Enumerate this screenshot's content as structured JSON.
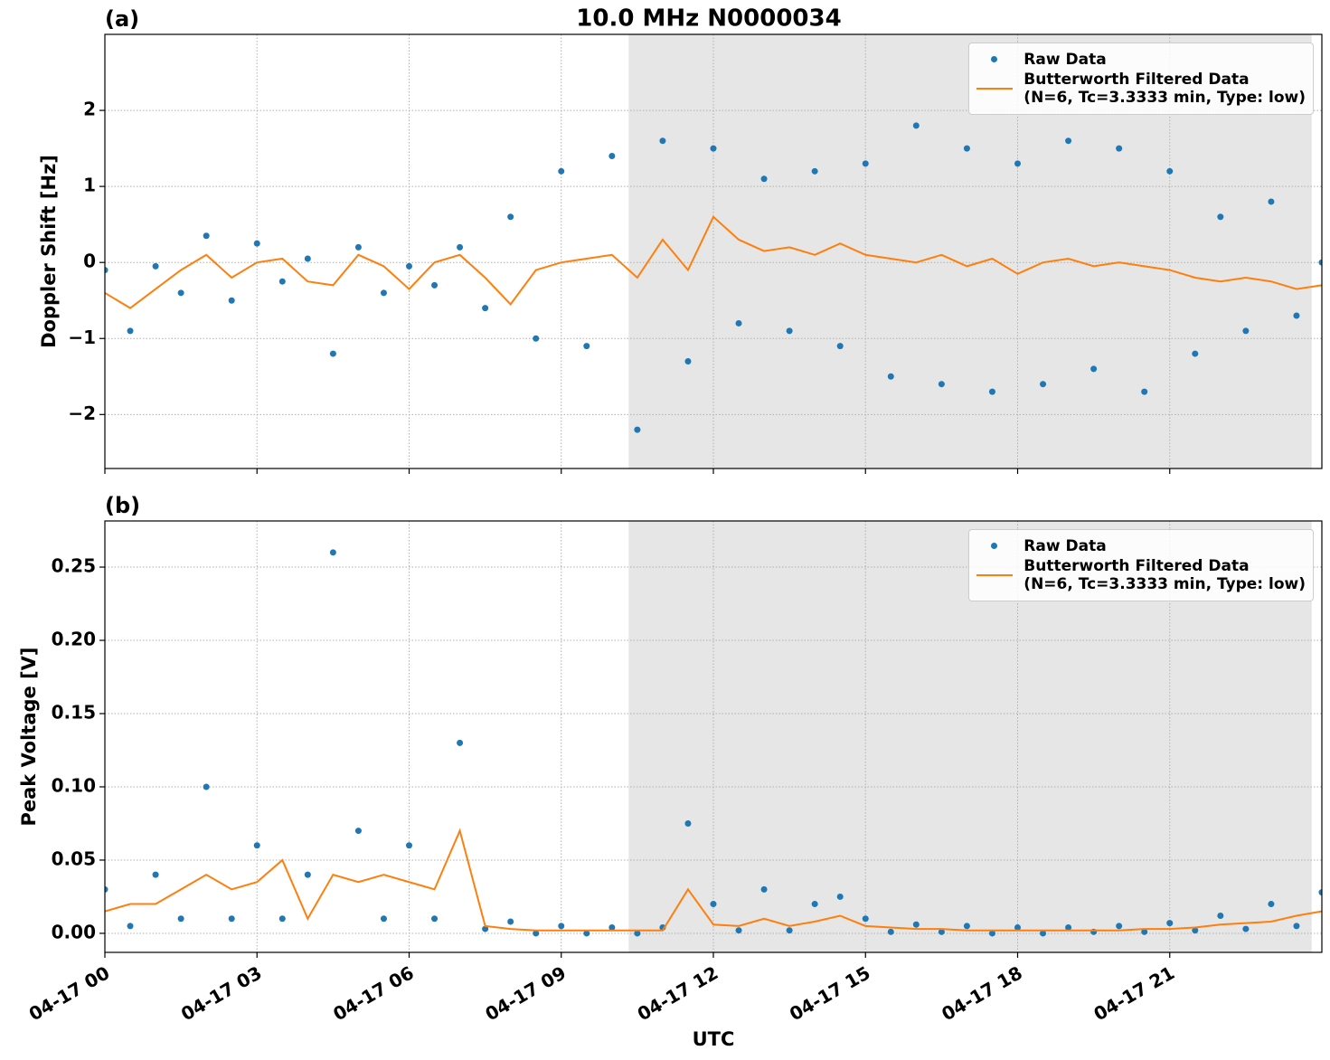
{
  "title": "10.0 MHz N0000034",
  "chart_data": [
    {
      "type": "line",
      "title": "(a)",
      "y_label": "Doppler Shift [Hz]",
      "ylim": [
        -2.71,
        3.0
      ],
      "yticks": [
        {
          "value": -2,
          "label": "−2"
        },
        {
          "value": -1,
          "label": "−1"
        },
        0,
        1,
        2
      ],
      "grid": true,
      "legend": "upper right",
      "shade": [
        10.33,
        23.8
      ],
      "x": [
        0,
        0.5,
        1,
        1.5,
        2,
        2.5,
        3,
        3.5,
        4,
        4.5,
        5,
        5.5,
        6,
        6.5,
        7,
        7.5,
        8,
        8.5,
        9,
        9.5,
        10,
        10.5,
        11,
        11.5,
        12,
        12.5,
        13,
        13.5,
        14,
        14.5,
        15,
        15.5,
        16,
        16.5,
        17,
        17.5,
        18,
        18.5,
        19,
        19.5,
        20,
        20.5,
        21,
        21.5,
        22,
        22.5,
        23,
        23.5,
        24
      ],
      "series": [
        {
          "name": "Raw Data",
          "color": "#1f77b4",
          "style": "points",
          "values": [
            -0.1,
            -0.9,
            -0.05,
            -0.4,
            0.35,
            -0.5,
            0.25,
            -0.25,
            0.05,
            -1.2,
            0.2,
            -0.4,
            -0.05,
            -0.3,
            0.2,
            -0.6,
            0.6,
            -1.0,
            1.2,
            -1.1,
            1.4,
            -2.2,
            1.6,
            -1.3,
            1.5,
            -0.8,
            1.1,
            -0.9,
            1.2,
            -1.1,
            1.3,
            -1.5,
            1.8,
            -1.6,
            1.5,
            -1.7,
            1.3,
            -1.6,
            1.6,
            -1.4,
            1.5,
            -1.7,
            1.2,
            -1.2,
            0.6,
            -0.9,
            0.8,
            -0.7,
            0.0
          ]
        },
        {
          "name": "Butterworth Filtered Data\n(N=6, Tc=3.3333 min, Type: low)",
          "color": "#ff7f0e",
          "style": "line",
          "values": [
            -0.4,
            -0.6,
            -0.35,
            -0.1,
            0.1,
            -0.2,
            0.0,
            0.05,
            -0.25,
            -0.3,
            0.1,
            -0.05,
            -0.35,
            0.0,
            0.1,
            -0.2,
            -0.55,
            -0.1,
            0.0,
            0.05,
            0.1,
            -0.2,
            0.3,
            -0.1,
            0.6,
            0.3,
            0.15,
            0.2,
            0.1,
            0.25,
            0.1,
            0.05,
            0.0,
            0.1,
            -0.05,
            0.05,
            -0.15,
            0.0,
            0.05,
            -0.05,
            0.0,
            -0.05,
            -0.1,
            -0.2,
            -0.25,
            -0.2,
            -0.25,
            -0.35,
            -0.3
          ]
        }
      ]
    },
    {
      "type": "line",
      "title": "(b)",
      "y_label": "Peak Voltage [V]",
      "x_label": "UTC",
      "xlim": [
        0,
        24
      ],
      "xticks": [
        {
          "value": 0,
          "label": "04-17 00"
        },
        {
          "value": 3,
          "label": "04-17 03"
        },
        {
          "value": 6,
          "label": "04-17 06"
        },
        {
          "value": 9,
          "label": "04-17 09"
        },
        {
          "value": 12,
          "label": "04-17 12"
        },
        {
          "value": 15,
          "label": "04-17 15"
        },
        {
          "value": 18,
          "label": "04-17 18"
        },
        {
          "value": 21,
          "label": "04-17 21"
        }
      ],
      "ylim": [
        -0.013,
        0.2815
      ],
      "yticks": [
        {
          "value": 0,
          "label": "0.00"
        },
        {
          "value": 0.05,
          "label": "0.05"
        },
        {
          "value": 0.1,
          "label": "0.10"
        },
        {
          "value": 0.15,
          "label": "0.15"
        },
        {
          "value": 0.2,
          "label": "0.20"
        },
        {
          "value": 0.25,
          "label": "0.25"
        }
      ],
      "grid": true,
      "legend": "upper right",
      "shade": [
        10.33,
        23.8
      ],
      "x": [
        0,
        0.5,
        1,
        1.5,
        2,
        2.5,
        3,
        3.5,
        4,
        4.5,
        5,
        5.5,
        6,
        6.5,
        7,
        7.5,
        8,
        8.5,
        9,
        9.5,
        10,
        10.5,
        11,
        11.5,
        12,
        12.5,
        13,
        13.5,
        14,
        14.5,
        15,
        15.5,
        16,
        16.5,
        17,
        17.5,
        18,
        18.5,
        19,
        19.5,
        20,
        20.5,
        21,
        21.5,
        22,
        22.5,
        23,
        23.5,
        24
      ],
      "series": [
        {
          "name": "Raw Data",
          "color": "#1f77b4",
          "style": "points",
          "values": [
            0.03,
            0.005,
            0.04,
            0.01,
            0.1,
            0.01,
            0.06,
            0.01,
            0.04,
            0.26,
            0.07,
            0.01,
            0.06,
            0.01,
            0.13,
            0.003,
            0.008,
            0.0,
            0.005,
            0.0,
            0.004,
            0.0,
            0.004,
            0.075,
            0.02,
            0.002,
            0.03,
            0.002,
            0.02,
            0.025,
            0.01,
            0.001,
            0.006,
            0.001,
            0.005,
            0.0,
            0.004,
            0.0,
            0.004,
            0.001,
            0.005,
            0.001,
            0.007,
            0.002,
            0.012,
            0.003,
            0.02,
            0.005,
            0.028
          ]
        },
        {
          "name": "Butterworth Filtered Data\n(N=6, Tc=3.3333 min, Type: low)",
          "color": "#ff7f0e",
          "style": "line",
          "values": [
            0.015,
            0.02,
            0.02,
            0.03,
            0.04,
            0.03,
            0.035,
            0.05,
            0.01,
            0.04,
            0.035,
            0.04,
            0.035,
            0.03,
            0.07,
            0.005,
            0.003,
            0.002,
            0.002,
            0.002,
            0.002,
            0.002,
            0.002,
            0.03,
            0.006,
            0.005,
            0.01,
            0.005,
            0.008,
            0.012,
            0.005,
            0.004,
            0.003,
            0.003,
            0.002,
            0.002,
            0.002,
            0.002,
            0.002,
            0.002,
            0.002,
            0.003,
            0.003,
            0.004,
            0.006,
            0.007,
            0.008,
            0.012,
            0.015
          ]
        }
      ]
    }
  ]
}
